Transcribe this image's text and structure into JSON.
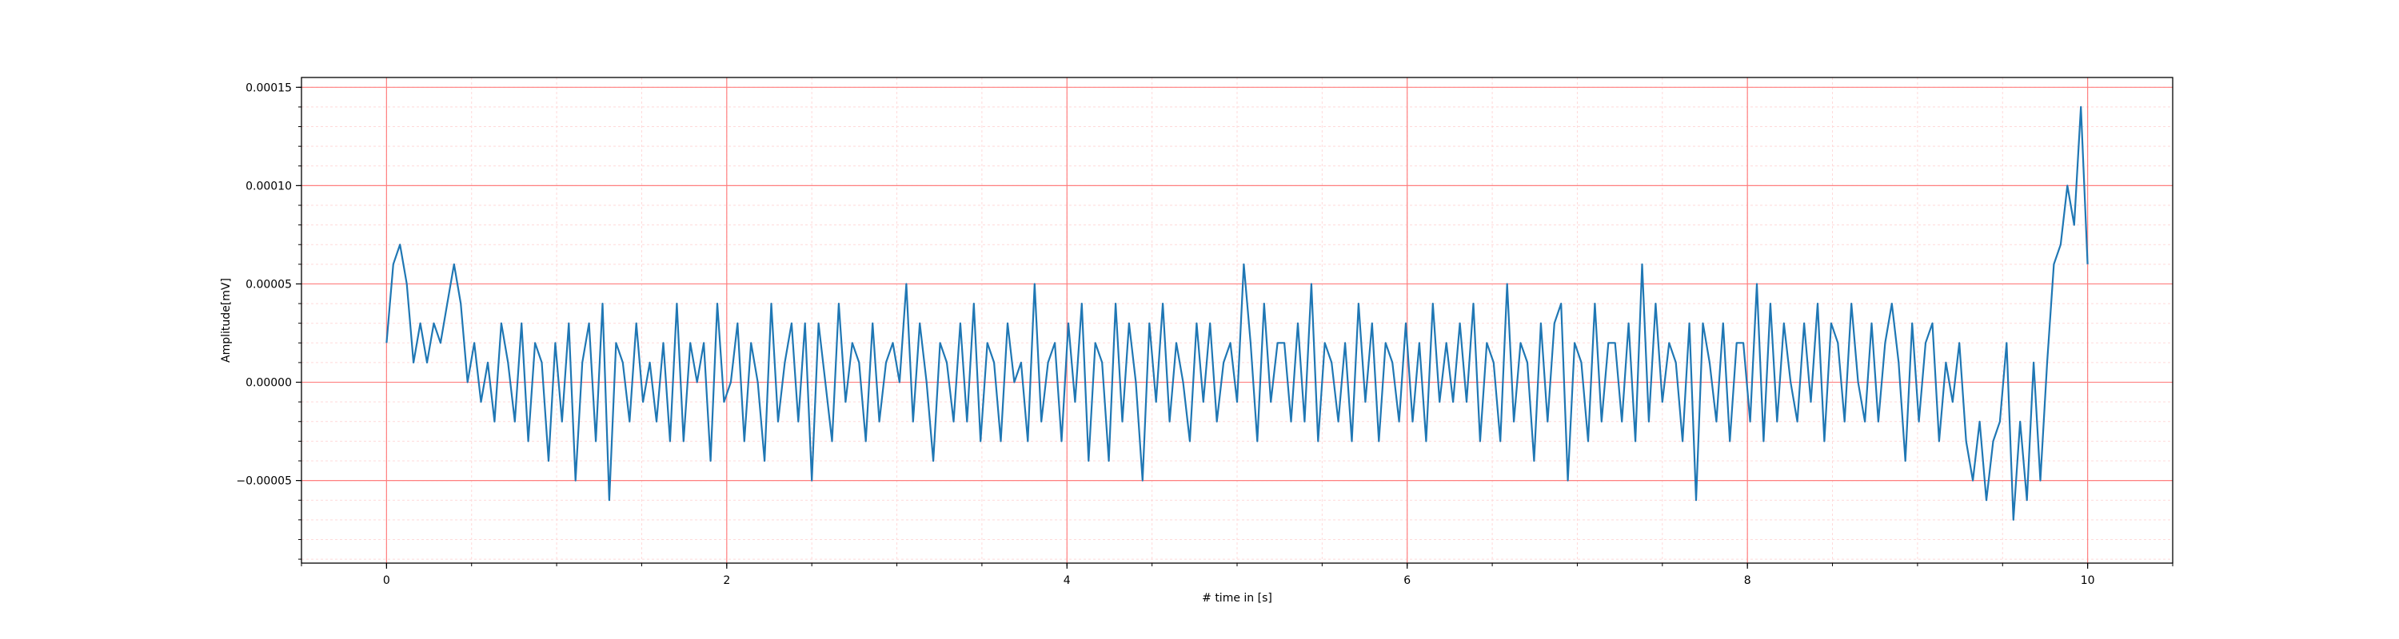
{
  "chart_data": {
    "type": "line",
    "title": "",
    "xlabel": "# time in [s]",
    "ylabel": "Amplitude[mV]",
    "xlim": [
      -0.5,
      10.5
    ],
    "ylim": [
      -9.2e-05,
      0.000155
    ],
    "x_ticks": [
      0,
      2,
      4,
      6,
      8,
      10
    ],
    "x_tick_labels": [
      "0",
      "2",
      "4",
      "6",
      "8",
      "10"
    ],
    "y_ticks": [
      -5e-05,
      0.0,
      5e-05,
      0.0001,
      0.00015
    ],
    "y_tick_labels": [
      "−0.00005",
      "0.00000",
      "0.00005",
      "0.00010",
      "0.00015"
    ],
    "grid": {
      "major": true,
      "minor": true
    },
    "colors": {
      "line": "#1f77b4",
      "major_grid": "#ff7f7f",
      "minor_grid": "#ffd9d9",
      "axes": "#000000"
    },
    "series": [
      {
        "name": "",
        "x_start": 0,
        "x_end": 10,
        "values": [
          2e-05,
          6e-05,
          7e-05,
          5e-05,
          1e-05,
          3e-05,
          1e-05,
          3e-05,
          2e-05,
          4e-05,
          6e-05,
          4e-05,
          0.0,
          2e-05,
          -1e-05,
          1e-05,
          -2e-05,
          3e-05,
          1e-05,
          -2e-05,
          3e-05,
          -3e-05,
          2e-05,
          1e-05,
          -4e-05,
          2e-05,
          -2e-05,
          3e-05,
          -5e-05,
          1e-05,
          3e-05,
          -3e-05,
          4e-05,
          -6e-05,
          2e-05,
          1e-05,
          -2e-05,
          3e-05,
          -1e-05,
          1e-05,
          -2e-05,
          2e-05,
          -3e-05,
          4e-05,
          -3e-05,
          2e-05,
          0.0,
          2e-05,
          -4e-05,
          4e-05,
          -1e-05,
          0.0,
          3e-05,
          -3e-05,
          2e-05,
          0.0,
          -4e-05,
          4e-05,
          -2e-05,
          1e-05,
          3e-05,
          -2e-05,
          3e-05,
          -5e-05,
          3e-05,
          0.0,
          -3e-05,
          4e-05,
          -1e-05,
          2e-05,
          1e-05,
          -3e-05,
          3e-05,
          -2e-05,
          1e-05,
          2e-05,
          0.0,
          5e-05,
          -2e-05,
          3e-05,
          0.0,
          -4e-05,
          2e-05,
          1e-05,
          -2e-05,
          3e-05,
          -2e-05,
          4e-05,
          -3e-05,
          2e-05,
          1e-05,
          -3e-05,
          3e-05,
          0.0,
          1e-05,
          -3e-05,
          5e-05,
          -2e-05,
          1e-05,
          2e-05,
          -3e-05,
          3e-05,
          -1e-05,
          4e-05,
          -4e-05,
          2e-05,
          1e-05,
          -4e-05,
          4e-05,
          -2e-05,
          3e-05,
          0.0,
          -5e-05,
          3e-05,
          -1e-05,
          4e-05,
          -2e-05,
          2e-05,
          0.0,
          -3e-05,
          3e-05,
          -1e-05,
          3e-05,
          -2e-05,
          1e-05,
          2e-05,
          -1e-05,
          6e-05,
          2e-05,
          -3e-05,
          4e-05,
          -1e-05,
          2e-05,
          2e-05,
          -2e-05,
          3e-05,
          -2e-05,
          5e-05,
          -3e-05,
          2e-05,
          1e-05,
          -2e-05,
          2e-05,
          -3e-05,
          4e-05,
          -1e-05,
          3e-05,
          -3e-05,
          2e-05,
          1e-05,
          -2e-05,
          3e-05,
          -2e-05,
          2e-05,
          -3e-05,
          4e-05,
          -1e-05,
          2e-05,
          -1e-05,
          3e-05,
          -1e-05,
          4e-05,
          -3e-05,
          2e-05,
          1e-05,
          -3e-05,
          5e-05,
          -2e-05,
          2e-05,
          1e-05,
          -4e-05,
          3e-05,
          -2e-05,
          3e-05,
          4e-05,
          -5e-05,
          2e-05,
          1e-05,
          -3e-05,
          4e-05,
          -2e-05,
          2e-05,
          2e-05,
          -2e-05,
          3e-05,
          -3e-05,
          6e-05,
          -2e-05,
          4e-05,
          -1e-05,
          2e-05,
          1e-05,
          -3e-05,
          3e-05,
          -6e-05,
          3e-05,
          1e-05,
          -2e-05,
          3e-05,
          -3e-05,
          2e-05,
          2e-05,
          -2e-05,
          5e-05,
          -3e-05,
          4e-05,
          -2e-05,
          3e-05,
          0.0,
          -2e-05,
          3e-05,
          -1e-05,
          4e-05,
          -3e-05,
          3e-05,
          2e-05,
          -2e-05,
          4e-05,
          0.0,
          -2e-05,
          3e-05,
          -2e-05,
          2e-05,
          4e-05,
          1e-05,
          -4e-05,
          3e-05,
          -2e-05,
          2e-05,
          3e-05,
          -3e-05,
          1e-05,
          -1e-05,
          2e-05,
          -3e-05,
          -5e-05,
          -2e-05,
          -6e-05,
          -3e-05,
          -2e-05,
          2e-05,
          -7e-05,
          -2e-05,
          -6e-05,
          1e-05,
          -5e-05,
          1e-05,
          6e-05,
          7e-05,
          0.0001,
          8e-05,
          0.00014,
          6e-05
        ]
      }
    ]
  }
}
